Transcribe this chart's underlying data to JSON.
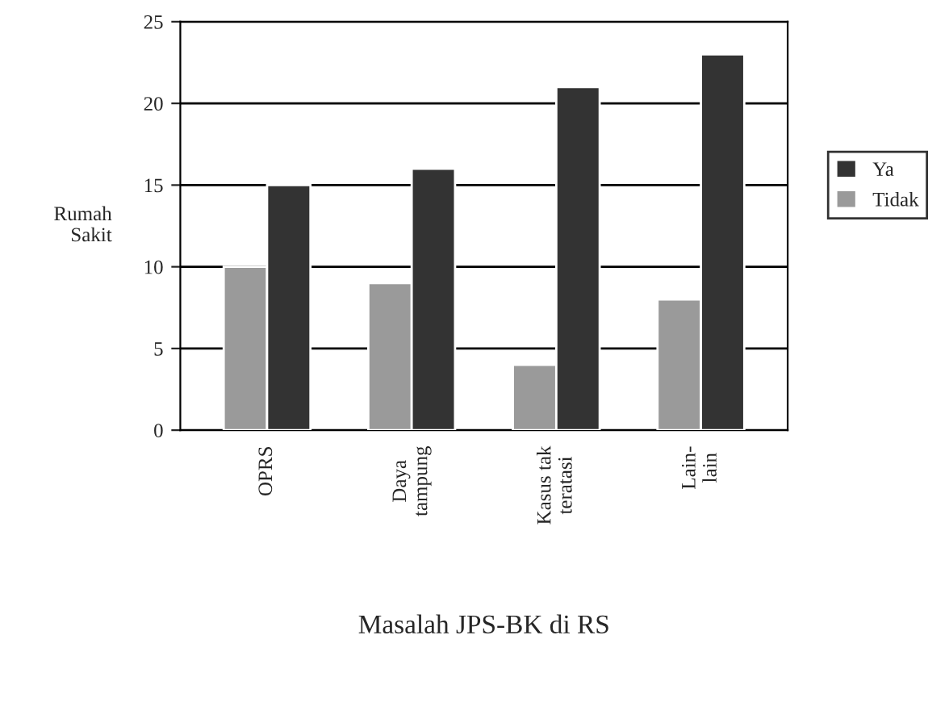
{
  "chart_data": {
    "type": "bar",
    "xlabel": "Masalah JPS-BK di RS",
    "ylabel": "Rumah\nSakit",
    "categories": [
      "OPRS",
      "Daya\ntampung",
      "Kasus tak\nteratasi",
      "Lain-\nlain"
    ],
    "series": [
      {
        "name": "Ya",
        "color": "#333333",
        "values": [
          15,
          16,
          21,
          23
        ]
      },
      {
        "name": "Tidak",
        "color": "#9a9a9a",
        "values": [
          10,
          9,
          4,
          8
        ]
      }
    ],
    "ylim": [
      0,
      25
    ],
    "yticks": [
      0,
      5,
      10,
      15,
      20,
      25
    ],
    "grid": "y",
    "legend": "right"
  }
}
